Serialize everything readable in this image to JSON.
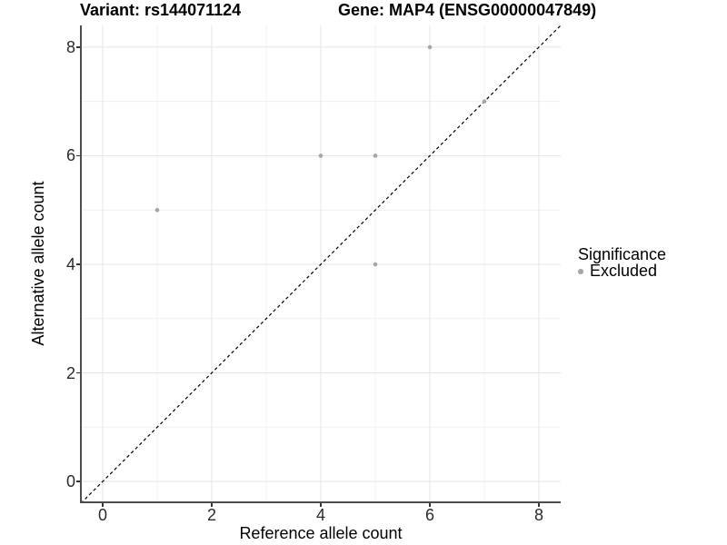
{
  "titles": {
    "variant": "Variant: rs144071124",
    "gene": "Gene: MAP4 (ENSG00000047849)"
  },
  "legend": {
    "title": "Significance",
    "items": [
      {
        "label": "Excluded",
        "color": "#a6a6a6"
      }
    ]
  },
  "chart_data": {
    "type": "scatter",
    "title_left": "Variant: rs144071124",
    "title_right": "Gene: MAP4 (ENSG00000047849)",
    "xlabel": "Reference allele count",
    "ylabel": "Alternative allele count",
    "xlim": [
      -0.4,
      8.4
    ],
    "ylim": [
      -0.4,
      8.4
    ],
    "xticks": [
      0,
      2,
      4,
      6,
      8
    ],
    "yticks": [
      0,
      2,
      4,
      6,
      8
    ],
    "minor_gridlines": [
      1,
      3,
      5,
      7
    ],
    "grid": "major+minor",
    "legend_position": "right",
    "series": [
      {
        "name": "Excluded",
        "color": "#a6a6a6",
        "points": [
          [
            1,
            5
          ],
          [
            4,
            6
          ],
          [
            5,
            6
          ],
          [
            5,
            4
          ],
          [
            6,
            8
          ],
          [
            7,
            7
          ]
        ]
      }
    ],
    "reference_line": {
      "slope": 1,
      "intercept": 0,
      "style": "dashed",
      "color": "#000000"
    }
  },
  "colors": {
    "background": "#ffffff",
    "axis_line": "#4d4d4d",
    "tick_mark": "#333333",
    "grid_major": "#e4e4e4",
    "grid_minor": "#f0f0f0",
    "point": "#a6a6a6",
    "tick_text": "#2b2b2b"
  }
}
